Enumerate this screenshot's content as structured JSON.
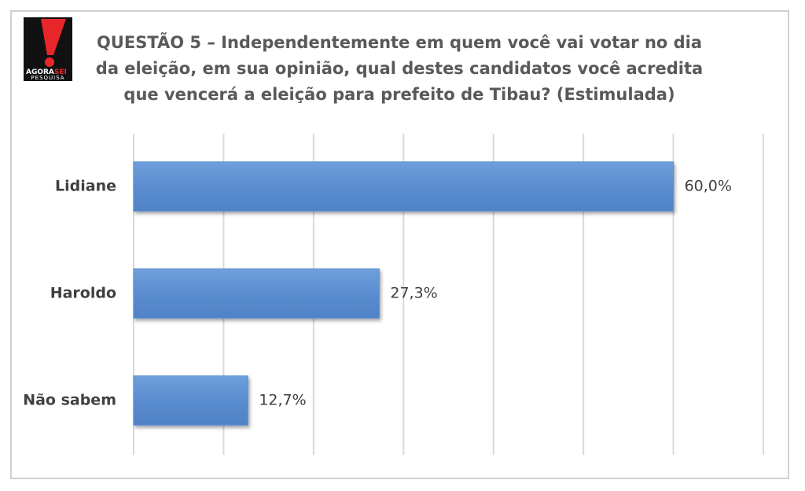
{
  "logo": {
    "brand": "AGORA",
    "brand_accent": "SEI",
    "tagline": "PESQUISA"
  },
  "chart_data": {
    "type": "bar",
    "orientation": "horizontal",
    "title": [
      "QUESTÃO 5 – Independentemente em quem você vai votar no dia",
      "da eleição, em sua opinião, qual destes candidatos você acredita",
      "que vencerá a eleição para prefeito de Tibau? (Estimulada)"
    ],
    "categories": [
      "Lidiane",
      "Haroldo",
      "Não sabem"
    ],
    "values": [
      60.0,
      27.3,
      12.7
    ],
    "value_labels": [
      "60,0%",
      "27,3%",
      "12,7%"
    ],
    "color": "#5b8fd2",
    "xlim": [
      0,
      70
    ],
    "xticks": [
      0,
      10,
      20,
      30,
      40,
      50,
      60,
      70
    ],
    "grid": true
  }
}
